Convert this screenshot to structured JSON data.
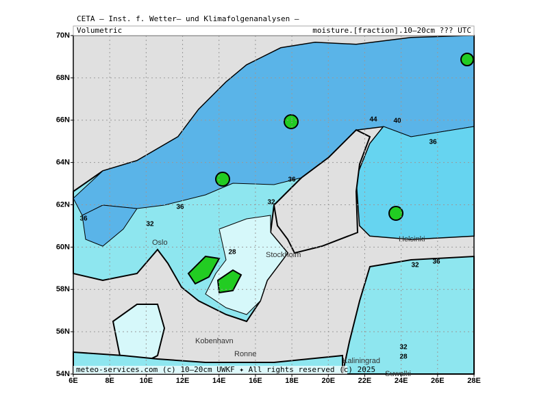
{
  "header": {
    "institute": "CETA — Inst. f. Wetter— und Klimafolgenanalysen —",
    "left": "Volumetric",
    "right": "moisture.[fraction].10—20cm ??? UTC"
  },
  "axes": {
    "lat_labels": [
      "70N",
      "68N",
      "66N",
      "64N",
      "62N",
      "60N",
      "58N",
      "56N",
      "54N"
    ],
    "lon_labels": [
      "6E",
      "8E",
      "10E",
      "12E",
      "14E",
      "16E",
      "18E",
      "20E",
      "22E",
      "24E",
      "26E",
      "28E"
    ]
  },
  "places": [
    "Oslo",
    "Stockholm",
    "Helsinki",
    "Kobenhavn",
    "Ronne",
    "Kaliningrad",
    "Suwalki"
  ],
  "contour_labels": [
    "36",
    "36",
    "36",
    "36",
    "36",
    "32",
    "32",
    "32",
    "32",
    "28",
    "28",
    "40",
    "44"
  ],
  "footer": "meteo-services.com (c) 10—20cm UWKF ✦ All rights reserved (c) 2025"
}
